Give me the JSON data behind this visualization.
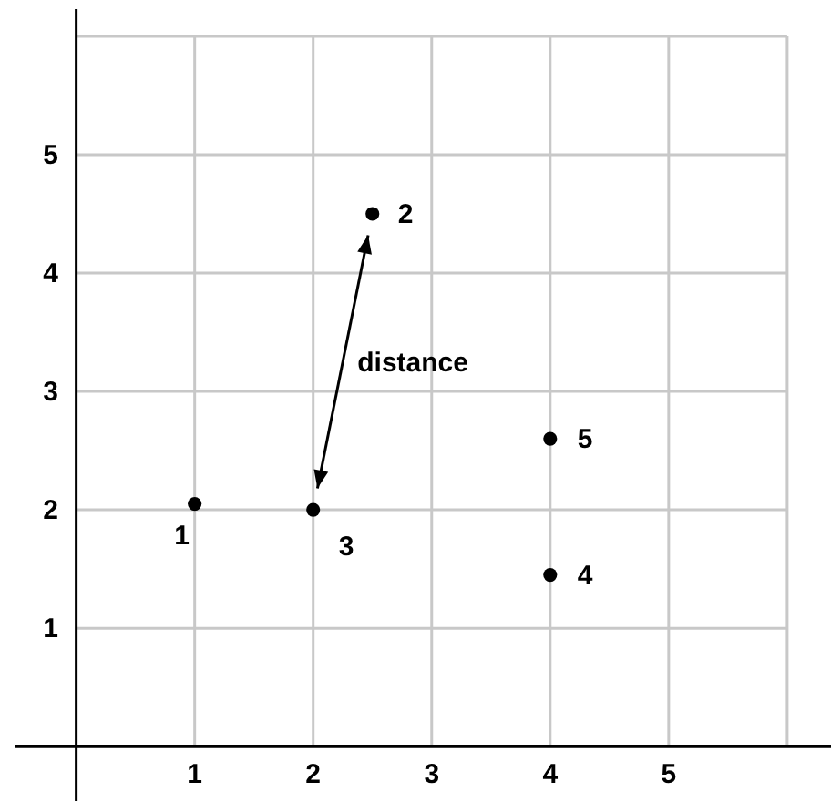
{
  "chart_data": {
    "type": "scatter",
    "x": [
      1,
      2.5,
      2,
      4,
      4
    ],
    "series": [
      {
        "color": "#000000",
        "values": [
          2.05,
          4.5,
          2,
          1.45,
          2.6
        ]
      }
    ],
    "xlim": [
      -0.52,
      6.37
    ],
    "ylim": [
      -0.46,
      6.23
    ],
    "xticks": [
      1,
      2,
      3,
      4,
      5,
      {
        "value": 6,
        "label": null
      }
    ],
    "yticks": [
      1,
      2,
      3,
      4,
      5,
      {
        "value": 6,
        "label": null
      }
    ],
    "grid": true,
    "marker": "circle",
    "annotations": [
      {
        "text": "1",
        "x": 1,
        "y": 2.05
      },
      {
        "text": "2",
        "x": 2.5,
        "y": 4.5
      },
      {
        "text": "3",
        "x": 2,
        "y": 2
      },
      {
        "text": "4",
        "x": 4,
        "y": 1.45
      },
      {
        "text": "5",
        "x": 4,
        "y": 2.6
      },
      "distance"
    ]
  }
}
